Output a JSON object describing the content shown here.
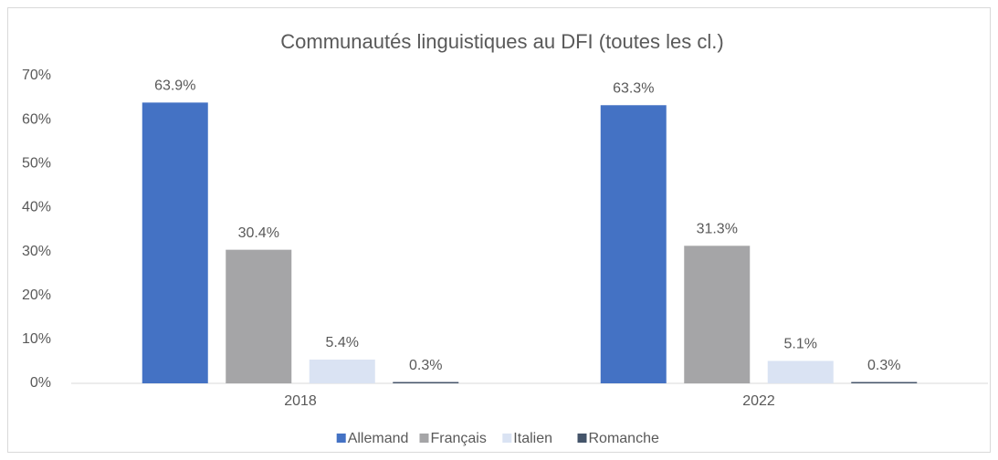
{
  "chart_data": {
    "type": "bar",
    "title": "Communautés linguistiques au DFI (toutes les cl.)",
    "categories": [
      "2018",
      "2022"
    ],
    "series": [
      {
        "name": "Allemand",
        "color": "#4472c4",
        "values": [
          63.9,
          63.3
        ],
        "value_labels": [
          "63.9%",
          "63.3%"
        ]
      },
      {
        "name": "Français",
        "color": "#a5a5a7",
        "values": [
          30.4,
          31.3
        ],
        "value_labels": [
          "30.4%",
          "31.3%"
        ]
      },
      {
        "name": "Italien",
        "color": "#dae3f3",
        "values": [
          5.4,
          5.1
        ],
        "value_labels": [
          "5.4%",
          "5.1%"
        ]
      },
      {
        "name": "Romanche",
        "color": "#44546a",
        "values": [
          0.3,
          0.3
        ],
        "value_labels": [
          "0.3%",
          "0.3%"
        ]
      }
    ],
    "ylim": [
      0,
      70
    ],
    "yticks": [
      {
        "value": 0,
        "label": "0%"
      },
      {
        "value": 10,
        "label": "10%"
      },
      {
        "value": 20,
        "label": "20%"
      },
      {
        "value": 30,
        "label": "30%"
      },
      {
        "value": 40,
        "label": "40%"
      },
      {
        "value": 50,
        "label": "50%"
      },
      {
        "value": 60,
        "label": "60%"
      },
      {
        "value": 70,
        "label": "70%"
      }
    ],
    "grid": false,
    "legend": "bottom"
  }
}
